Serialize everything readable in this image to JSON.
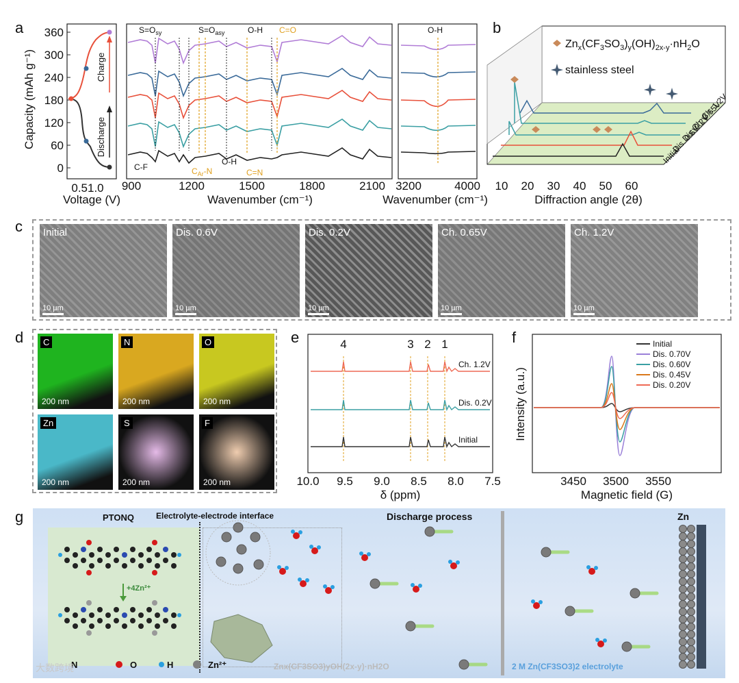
{
  "panel_labels": [
    "a",
    "b",
    "c",
    "d",
    "e",
    "f",
    "g"
  ],
  "panel_a": {
    "ylabel": "Capacity (mAh g⁻¹)",
    "yticks": [
      "360",
      "300",
      "240",
      "180",
      "120",
      "60",
      "0"
    ],
    "xlabel": "Voltage (V)",
    "xticks": "0.51.0",
    "charge_label": "Charge",
    "discharge_label": "Discharge",
    "ftir_xlabel": "Wavenumber (cm⁻¹)",
    "ftir_xticks": [
      "900",
      "1200",
      "1500",
      "1800",
      "2100"
    ],
    "ftir2_xticks": [
      "3200",
      "4000"
    ],
    "ftir2_xlabel": "Wavenumber (cm⁻¹)",
    "ann_sosy": "S=O",
    "ann_sosy_sub": "sy",
    "ann_soasy": "S=O",
    "ann_soasy_sub": "asy",
    "ann_oh": "O-H",
    "ann_co": "C=O",
    "ann_cf": "C-F",
    "ann_carn": "C",
    "ann_carn_sub": "Ar",
    "ann_carn_tail": "-N",
    "ann_oh2": "O-H",
    "ann_cn": "C=N",
    "ann_oh3": "O-H",
    "colors": [
      "#222222",
      "#3a9fa3",
      "#e8503a",
      "#3a6a99",
      "#b07cd6"
    ]
  },
  "panel_b": {
    "legend1": "Zn",
    "legend1_full": "Znx(CF3SO3)y(OH)2x-y·nH2O",
    "legend2": "stainless steel",
    "xlabel": "Diffraction angle (2θ)",
    "xticks": [
      "10",
      "20",
      "30",
      "40",
      "50",
      "60"
    ],
    "series": [
      "Ch. 1.2V",
      "Ch. 0.65V",
      "Dis. 0.2V",
      "Dis. 0.6V",
      "Initial"
    ]
  },
  "panel_c": {
    "images": [
      "Initial",
      "Dis. 0.6V",
      "Dis. 0.2V",
      "Ch. 0.65V",
      "Ch. 1.2V"
    ],
    "scale": "10 μm"
  },
  "panel_d": {
    "maps": [
      {
        "el": "C",
        "color": "#1fb41f"
      },
      {
        "el": "N",
        "color": "#d9a820"
      },
      {
        "el": "O",
        "color": "#c8c820"
      },
      {
        "el": "Zn",
        "color": "#4ab8c8"
      },
      {
        "el": "S",
        "color": "#b030b8"
      },
      {
        "el": "F",
        "color": "#d06810"
      }
    ],
    "scale": "200 nm"
  },
  "panel_e": {
    "peaks": [
      "4",
      "3",
      "2",
      "1"
    ],
    "series": [
      "Ch. 1.2V",
      "Dis. 0.2V",
      "Initial"
    ],
    "xticks": [
      "10.0",
      "9.5",
      "9.0",
      "8.5",
      "8.0",
      "7.5"
    ],
    "xlabel": "δ (ppm)"
  },
  "panel_f": {
    "legend": [
      {
        "name": "Initial",
        "color": "#333333"
      },
      {
        "name": "Dis. 0.70V",
        "color": "#9a80d8"
      },
      {
        "name": "Dis. 0.60V",
        "color": "#3a9fa3"
      },
      {
        "name": "Dis. 0.45V",
        "color": "#d9781a"
      },
      {
        "name": "Dis. 0.20V",
        "color": "#ee6a55"
      }
    ],
    "ylabel": "Intensity (a.u.)",
    "xticks": [
      "3450",
      "3500",
      "3550"
    ],
    "xlabel": "Magnetic field (G)"
  },
  "panel_g": {
    "ptonq": "PTONQ",
    "interface": "Electrolyte-electrode interface",
    "discharge": "Discharge process",
    "zn": "Zn",
    "reaction": "+4Zn²⁺",
    "legend": [
      "N",
      "O",
      "H",
      "Zn²⁺"
    ],
    "product": "Znx(CF3SO3)yOH(2x-y)·nH2O",
    "electrolyte": "2 M Zn(CF3SO3)2 electrolyte",
    "watermark": "大数跨境"
  }
}
